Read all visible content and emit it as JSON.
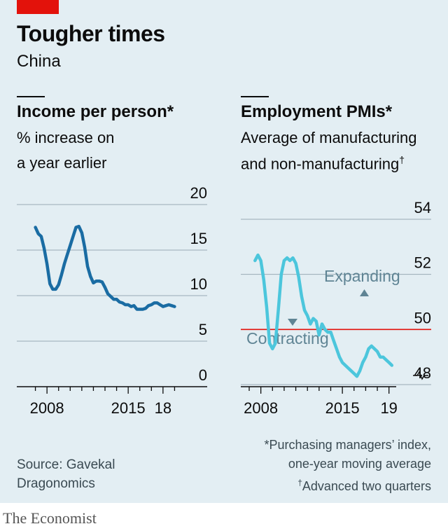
{
  "header": {
    "title": "Tougher times",
    "subtitle": "China"
  },
  "chart_data": [
    {
      "type": "line",
      "title": "Income per person*",
      "subtitle_line1": "% increase on",
      "subtitle_line2": "a year earlier",
      "y_ticks": [
        "20",
        "15",
        "10",
        "5",
        "0"
      ],
      "ylim": [
        0,
        20
      ],
      "x_tick_labels": [
        "2008",
        "2015",
        "18"
      ],
      "xlim": [
        2006,
        2020
      ],
      "color": "#1a6ca3",
      "series": [
        {
          "x": [
            2007.0,
            2007.25,
            2007.5,
            2007.75,
            2008.0,
            2008.25,
            2008.5,
            2008.75,
            2009.0,
            2009.25,
            2009.5,
            2009.75,
            2010.0,
            2010.25,
            2010.5,
            2010.75,
            2011.0,
            2011.25,
            2011.5,
            2011.75,
            2012.0,
            2012.25,
            2012.5,
            2012.75,
            2013.0,
            2013.25,
            2013.5,
            2013.75,
            2014.0,
            2014.25,
            2014.5,
            2014.75,
            2015.0,
            2015.25,
            2015.5,
            2015.75,
            2016.0,
            2016.25,
            2016.5,
            2016.75,
            2017.0,
            2017.25,
            2017.5,
            2017.75,
            2018.0,
            2018.25,
            2018.5,
            2018.75,
            2019.0
          ],
          "values": [
            17.5,
            16.8,
            16.5,
            15.2,
            13.5,
            11.3,
            10.7,
            10.7,
            11.2,
            12.3,
            13.5,
            14.5,
            15.5,
            16.5,
            17.5,
            17.6,
            16.9,
            15.3,
            13.2,
            12.1,
            11.4,
            11.6,
            11.6,
            11.5,
            10.9,
            10.2,
            9.9,
            9.6,
            9.6,
            9.3,
            9.2,
            9.0,
            9.0,
            8.8,
            8.9,
            8.5,
            8.5,
            8.5,
            8.6,
            8.9,
            9.0,
            9.2,
            9.2,
            9.0,
            8.8,
            8.9,
            9.0,
            8.9,
            8.8
          ]
        }
      ]
    },
    {
      "type": "line",
      "title": "Employment PMIs*",
      "subtitle_line1": "Average of manufacturing",
      "subtitle_line2": "and non-manufacturing",
      "subtitle_mark": "†",
      "y_ticks": [
        "54",
        "52",
        "50",
        "48"
      ],
      "ylim": [
        47.5,
        54
      ],
      "x_tick_labels": [
        "2008",
        "2015",
        "19"
      ],
      "xlim": [
        2006.75,
        2020
      ],
      "reference_line": 50,
      "annotations": [
        "Expanding",
        "Contracting"
      ],
      "color": "#4cc6dc",
      "series": [
        {
          "x": [
            2007.5,
            2007.75,
            2008.0,
            2008.25,
            2008.5,
            2008.75,
            2009.0,
            2009.25,
            2009.5,
            2009.75,
            2010.0,
            2010.25,
            2010.5,
            2010.75,
            2011.0,
            2011.25,
            2011.5,
            2011.75,
            2012.0,
            2012.25,
            2012.5,
            2012.75,
            2013.0,
            2013.25,
            2013.5,
            2013.75,
            2014.0,
            2014.25,
            2014.5,
            2014.75,
            2015.0,
            2015.25,
            2015.5,
            2015.75,
            2016.0,
            2016.25,
            2016.5,
            2016.75,
            2017.0,
            2017.25,
            2017.5,
            2017.75,
            2018.0,
            2018.25,
            2018.5,
            2018.75,
            2019.0,
            2019.25
          ],
          "values": [
            52.5,
            52.7,
            52.5,
            51.8,
            50.8,
            49.5,
            49.3,
            49.5,
            50.7,
            52.0,
            52.5,
            52.6,
            52.5,
            52.6,
            52.4,
            51.9,
            51.2,
            50.7,
            50.5,
            50.2,
            50.4,
            50.3,
            49.8,
            50.2,
            50.0,
            49.9,
            49.9,
            49.6,
            49.3,
            49.0,
            48.8,
            48.7,
            48.6,
            48.5,
            48.4,
            48.3,
            48.5,
            48.8,
            49.0,
            49.3,
            49.4,
            49.3,
            49.2,
            49.0,
            49.0,
            48.9,
            48.8,
            48.7
          ]
        }
      ]
    }
  ],
  "footer": {
    "source_line1": "Source: Gavekal",
    "source_line2": "Dragonomics",
    "footnote_line1": "*Purchasing managers’ index,",
    "footnote_line2": "one-year moving average",
    "footnote_line3_mark": "†",
    "footnote_line3": "Advanced two quarters",
    "brand": "The Economist"
  }
}
